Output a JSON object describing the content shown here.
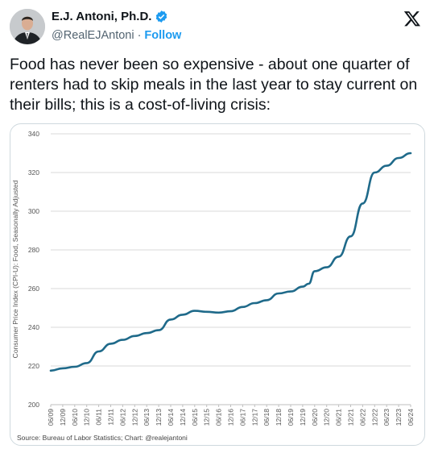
{
  "author": {
    "name": "E.J. Antoni, Ph.D.",
    "handle": "@RealEJAntoni",
    "follow_label": "Follow",
    "separator": "·"
  },
  "tweet": {
    "text": "Food has never been so expensive - about one quarter of renters had to skip meals in the last year to stay current on their bills; this is a cost-of-living crisis:"
  },
  "chart_source": "Source: Bureau of Labor Statistics; Chart: @realejantoni",
  "chart_data": {
    "type": "line",
    "title": "",
    "xlabel": "",
    "ylabel": "Consumer Price Index (CPI-U): Food, Seasonally Adjusted",
    "ylim": [
      200,
      340
    ],
    "yticks": [
      200,
      220,
      240,
      260,
      280,
      300,
      320,
      340
    ],
    "xticks": [
      "06/09",
      "12/09",
      "06/10",
      "12/10",
      "06/11",
      "12/11",
      "06/12",
      "12/12",
      "06/13",
      "12/13",
      "06/14",
      "12/14",
      "06/15",
      "12/15",
      "06/16",
      "12/16",
      "06/17",
      "12/17",
      "06/18",
      "12/18",
      "06/19",
      "12/19",
      "06/20",
      "12/20",
      "06/21",
      "12/21",
      "06/22",
      "12/22",
      "06/23",
      "12/23",
      "06/24"
    ],
    "color": "#1f6a8a",
    "series": [
      {
        "x": [
          "06/09",
          "12/09",
          "06/10",
          "12/10",
          "06/11",
          "12/11",
          "06/12",
          "12/12",
          "06/13",
          "12/13",
          "06/14",
          "12/14",
          "06/15",
          "12/15",
          "06/16",
          "12/16",
          "06/17",
          "12/17",
          "06/18",
          "12/18",
          "06/19",
          "12/19",
          "03/20",
          "06/20",
          "12/20",
          "06/21",
          "12/21",
          "06/22",
          "12/22",
          "06/23",
          "12/23",
          "06/24"
        ],
        "values": [
          217.6,
          218.8,
          219.6,
          221.5,
          227.5,
          231.5,
          233.5,
          235.5,
          237.0,
          238.5,
          244.0,
          246.5,
          248.5,
          248.0,
          247.6,
          248.3,
          250.5,
          252.5,
          254.0,
          257.5,
          258.5,
          261.0,
          262.5,
          269.0,
          271.0,
          276.5,
          287.0,
          304.0,
          320.0,
          323.5,
          327.5,
          330.0
        ]
      }
    ]
  }
}
